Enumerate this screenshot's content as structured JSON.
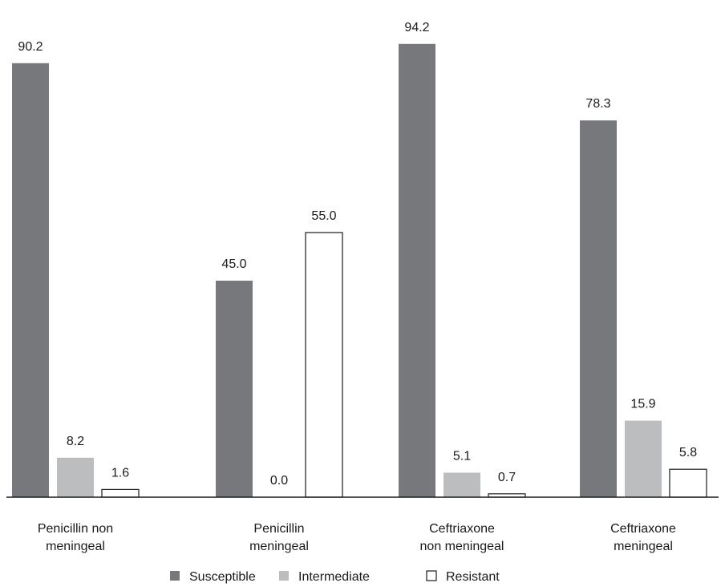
{
  "chart_data": {
    "type": "bar",
    "categories": [
      [
        "Penicillin non",
        "meningeal"
      ],
      [
        "Penicillin",
        "meningeal"
      ],
      [
        "Ceftriaxone",
        "non meningeal"
      ],
      [
        "Ceftriaxone",
        "meningeal"
      ]
    ],
    "series": [
      {
        "name": "Susceptible",
        "color": "#77787b",
        "stroke": "none",
        "values": [
          90.2,
          45.0,
          94.2,
          78.3
        ]
      },
      {
        "name": "Intermediate",
        "color": "#bcbdbf",
        "stroke": "none",
        "values": [
          8.2,
          0.0,
          5.1,
          15.9
        ]
      },
      {
        "name": "Resistant",
        "color": "#ffffff",
        "stroke": "#1a1a1a",
        "values": [
          1.6,
          55.0,
          0.7,
          5.8
        ]
      }
    ],
    "value_labels": [
      [
        "90.2",
        "8.2",
        "1.6"
      ],
      [
        "45.0",
        "0.0",
        "55.0"
      ],
      [
        "94.2",
        "5.1",
        "0.7"
      ],
      [
        "78.3",
        "15.9",
        "5.8"
      ]
    ],
    "title": "",
    "xlabel": "",
    "ylabel": "",
    "ylim": [
      0,
      100
    ],
    "grid": false,
    "legend_position": "bottom"
  }
}
